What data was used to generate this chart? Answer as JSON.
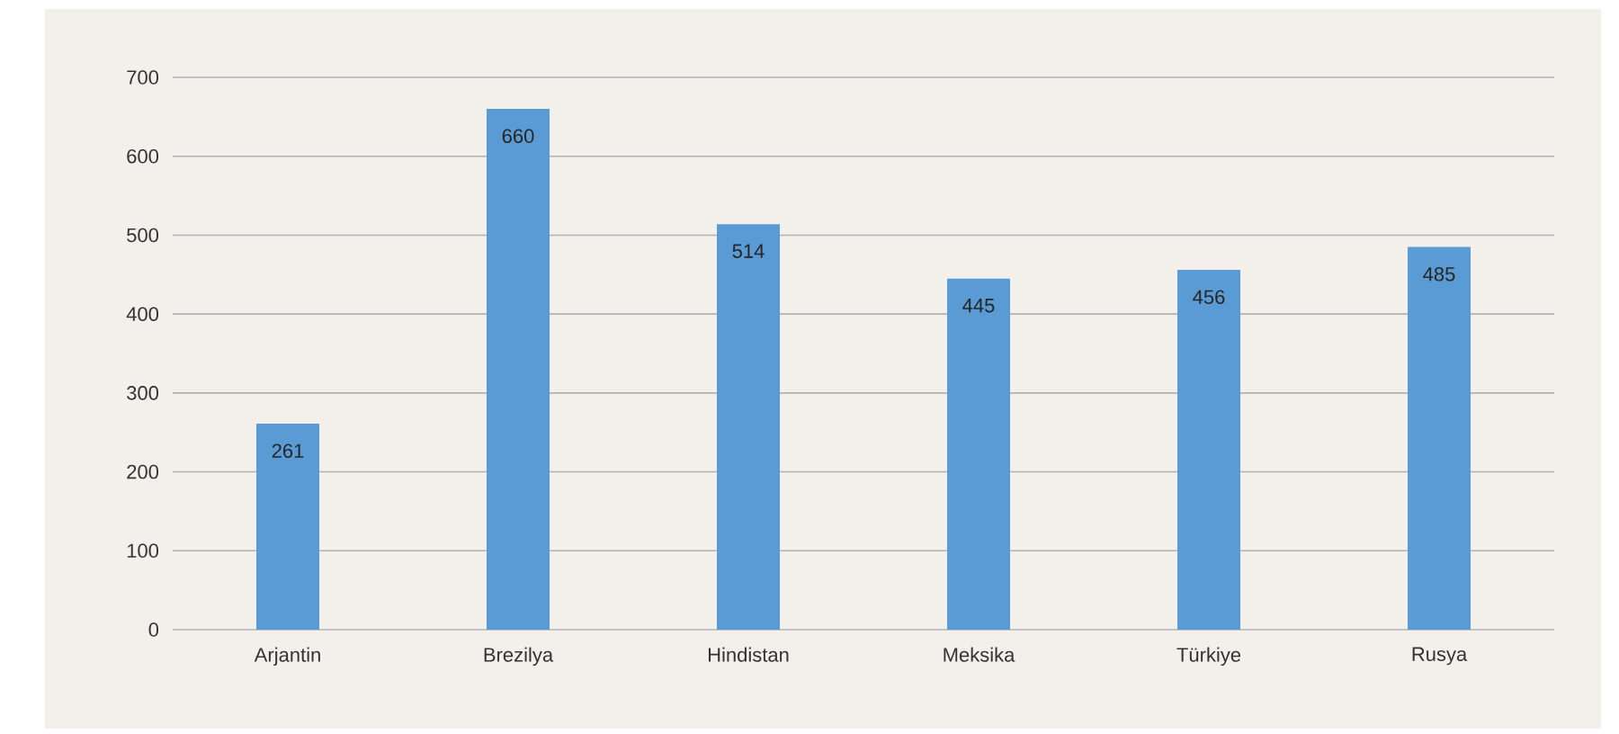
{
  "chart_data": {
    "type": "bar",
    "categories": [
      "Arjantin",
      "Brezilya",
      "Hindistan",
      "Meksika",
      "Türkiye",
      "Rusya"
    ],
    "values": [
      261,
      660,
      514,
      445,
      456,
      485
    ],
    "color": "#5b9bd5",
    "ylim": [
      0,
      700
    ],
    "yticks": [
      0,
      100,
      200,
      300,
      400,
      500,
      600,
      700
    ],
    "grid": "y",
    "data_labels": true
  }
}
